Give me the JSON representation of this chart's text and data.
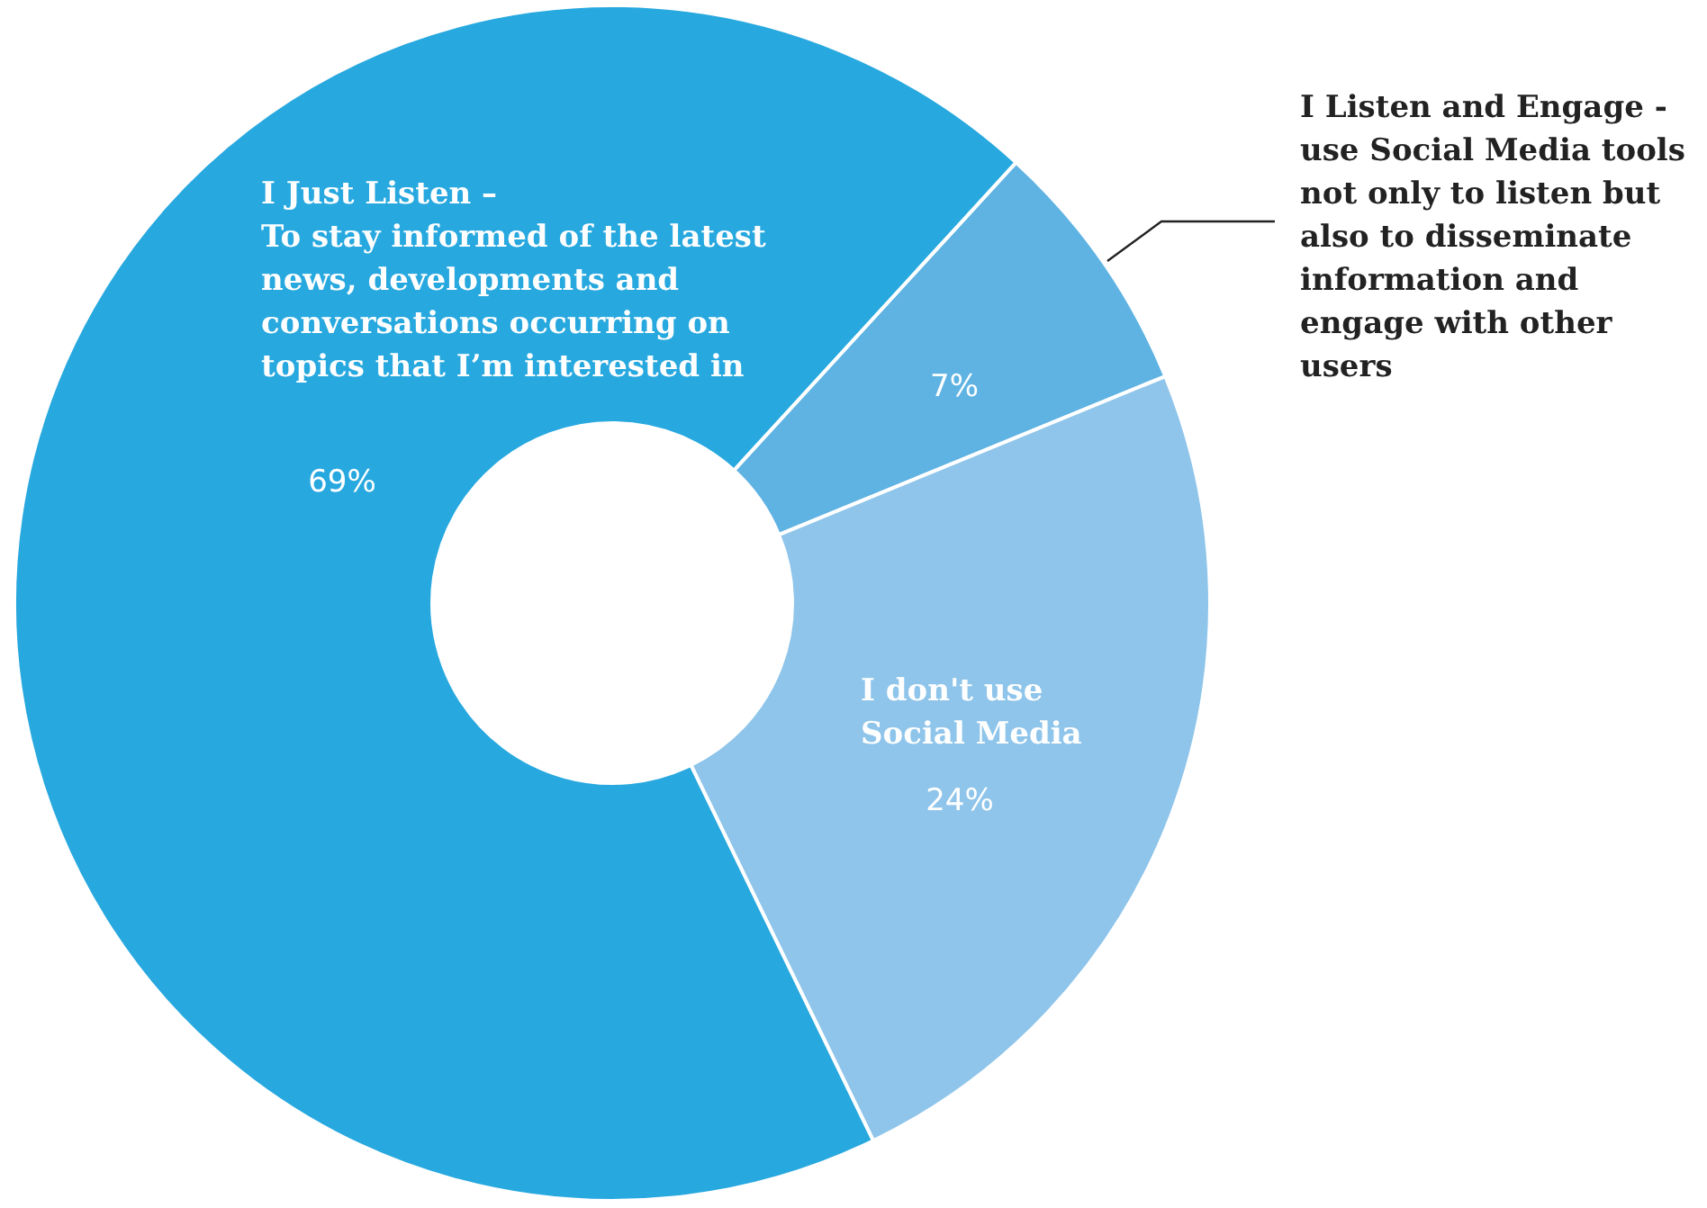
{
  "chart_data": {
    "type": "donut",
    "categories": [
      "I Listen and Engage -\nuse Social Media tools\nnot only to listen but\nalso to disseminate\ninformation and\nengage with other\nusers",
      "I don't use\nSocial Media",
      "I Just Listen –\nTo stay informed of the latest\nnews, developments and\nconversations occurring on\ntopics that I’m interested in"
    ],
    "values": [
      7,
      24,
      69
    ],
    "colors": [
      "#5fb3e3",
      "#8fc5ea",
      "#27a8df"
    ],
    "value_labels": [
      "7%",
      "24%",
      "69%"
    ]
  }
}
